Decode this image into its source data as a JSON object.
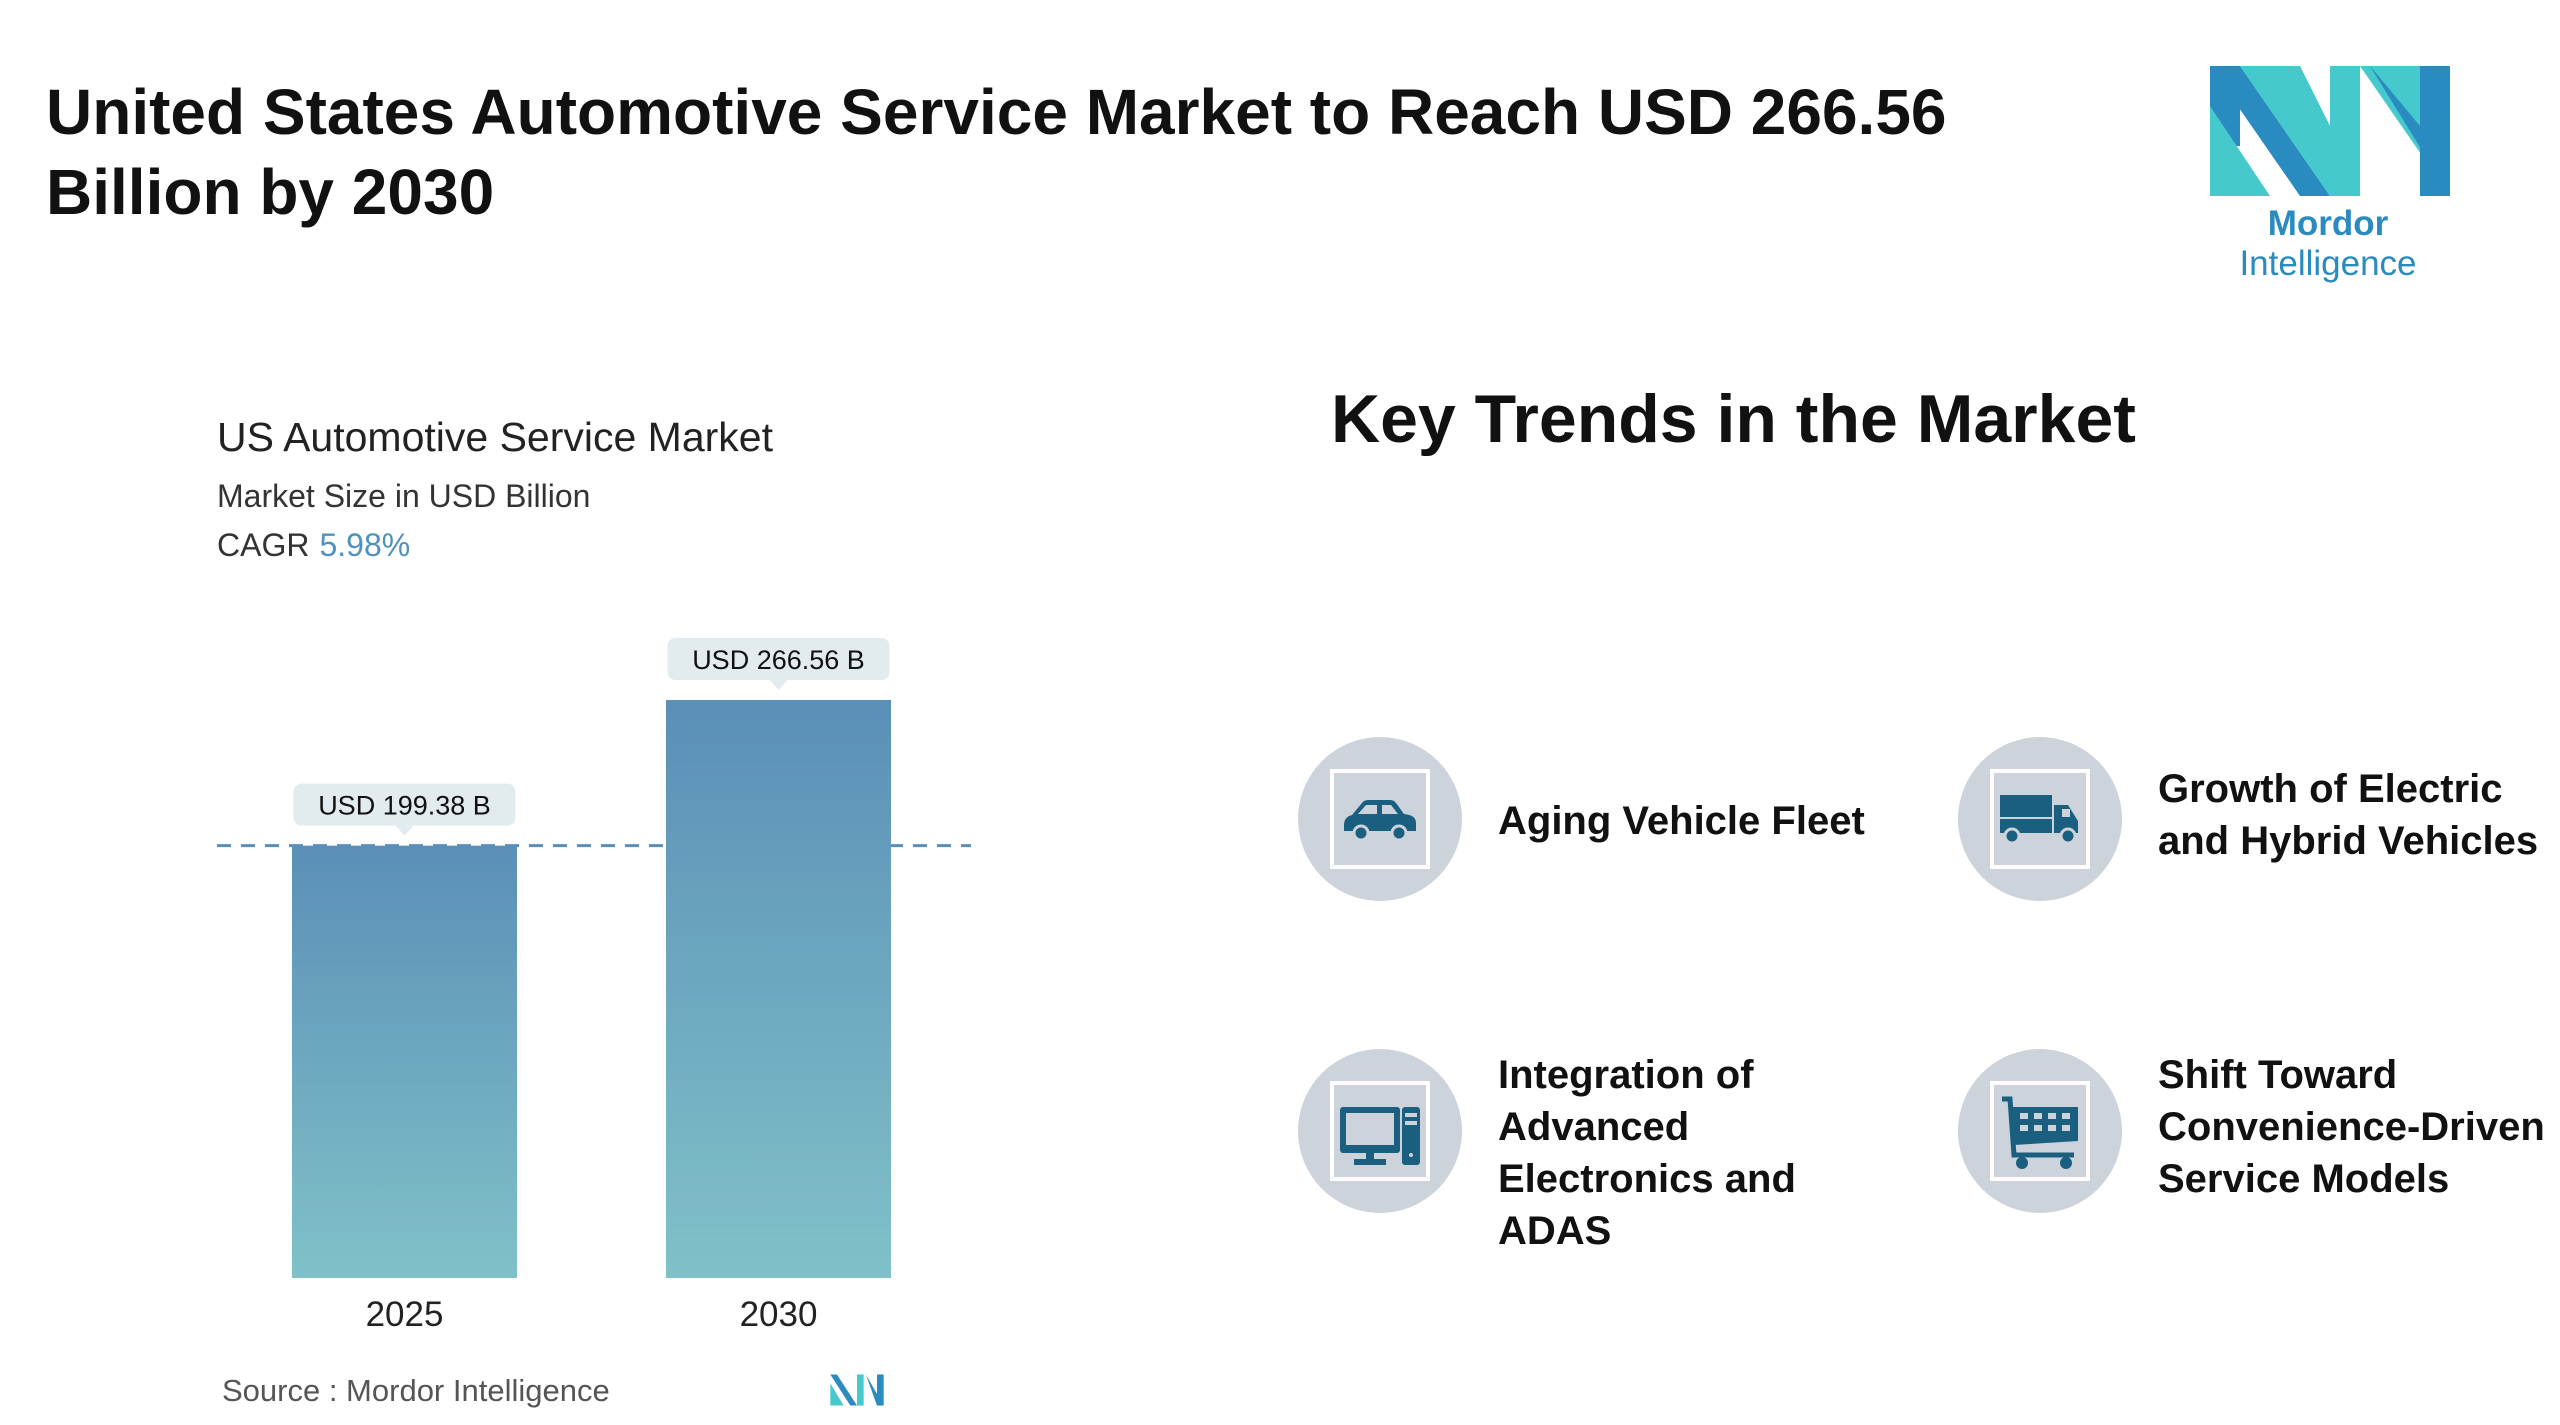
{
  "header": {
    "title": "United States Automotive Service Market to Reach USD 266.56 Billion by 2030",
    "logo_text_bold": "Mordor",
    "logo_text": "Intelligence"
  },
  "chart_panel": {
    "title": "US Automotive Service Market",
    "subtitle": "Market Size in USD Billion",
    "cagr_label": "CAGR",
    "cagr_value": "5.98%",
    "source": "Source :  Mordor Intelligence"
  },
  "chart_data": {
    "type": "bar",
    "title": "US Automotive Service Market",
    "ylabel": "Market Size in USD Billion",
    "categories": [
      "2025",
      "2030"
    ],
    "values": [
      199.38,
      266.56
    ],
    "data_labels": [
      "USD 199.38 B",
      "USD 266.56 B"
    ],
    "ylim": [
      0,
      266.56
    ],
    "reference_line": 199.38,
    "grid": false,
    "colors": {
      "bar_top": "#5b8fb7",
      "bar_bottom": "#80c1c8",
      "label_bg": "#e2ebee",
      "dash": "#5b8fb7"
    }
  },
  "trends": {
    "title": "Key Trends in the Market",
    "items": [
      {
        "label": "Aging Vehicle Fleet",
        "icon": "car-icon"
      },
      {
        "label": "Growth of Electric and Hybrid Vehicles",
        "icon": "truck-icon"
      },
      {
        "label": "Integration of Advanced Electronics and ADAS",
        "icon": "computer-icon"
      },
      {
        "label": "Shift Toward Convenience-Driven Service Models",
        "icon": "cart-icon"
      }
    ]
  },
  "colors": {
    "icon": "#1a5f80",
    "circle": "#cdd3da",
    "logo_dark": "#2a8bc0",
    "logo_light": "#45c9cc"
  }
}
